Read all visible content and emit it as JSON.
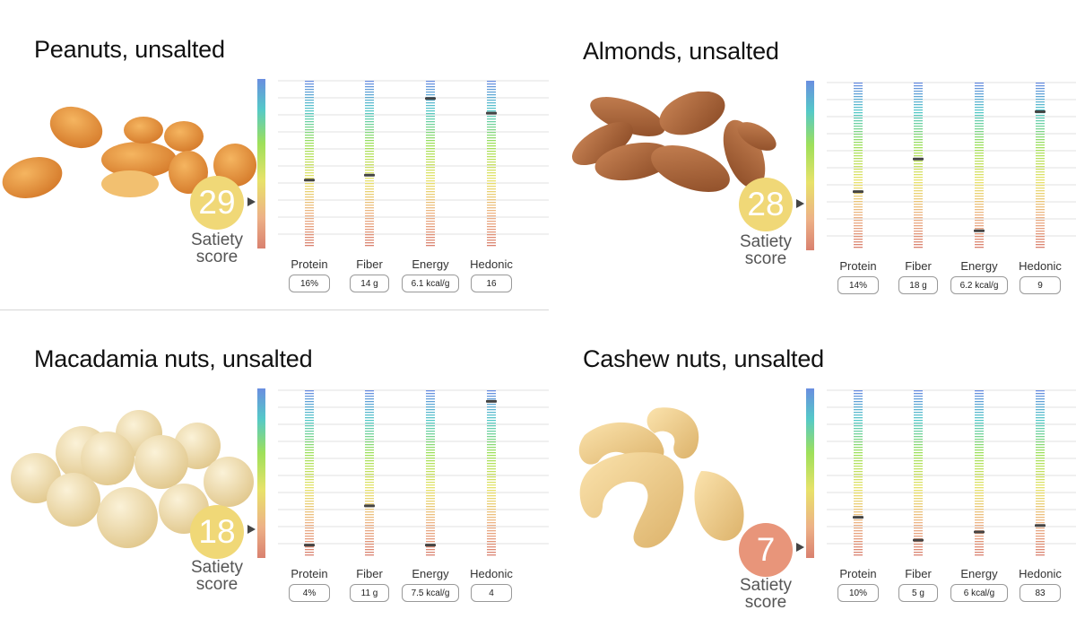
{
  "colors": {
    "score_yellow": "#f0d877",
    "score_orange": "#e8957a",
    "marker": "#444444",
    "gridline": "#e2e2e2"
  },
  "score_text": "Satiety score",
  "metrics": [
    "Protein",
    "Fiber",
    "Energy",
    "Hedonic"
  ],
  "chart_data": [
    {
      "type": "bar",
      "title": "Peanuts, unsalted",
      "image": "peanuts-photo",
      "score": 29,
      "score_color": "#f0d877",
      "categories": [
        "Protein",
        "Fiber",
        "Energy",
        "Hedonic"
      ],
      "values": [
        "16%",
        "14 g",
        "6.1 kcal/g",
        "16"
      ],
      "marker_levels": [
        0.4,
        0.43,
        0.9,
        0.81
      ]
    },
    {
      "type": "bar",
      "title": "Almonds, unsalted",
      "image": "almonds-photo",
      "score": 28,
      "score_color": "#f0d877",
      "categories": [
        "Protein",
        "Fiber",
        "Energy",
        "Hedonic"
      ],
      "values": [
        "14%",
        "18 g",
        "6.2 kcal/g",
        "9"
      ],
      "marker_levels": [
        0.34,
        0.54,
        0.1,
        0.83
      ]
    },
    {
      "type": "bar",
      "title": "Macadamia nuts, unsalted",
      "image": "macadamia-photo",
      "score": 18,
      "score_color": "#f0d877",
      "categories": [
        "Protein",
        "Fiber",
        "Energy",
        "Hedonic"
      ],
      "values": [
        "4%",
        "11 g",
        "7.5 kcal/g",
        "4"
      ],
      "marker_levels": [
        0.06,
        0.3,
        0.06,
        0.94
      ]
    },
    {
      "type": "bar",
      "title": "Cashew nuts, unsalted",
      "image": "cashew-photo",
      "score": 7,
      "score_color": "#e8957a",
      "categories": [
        "Protein",
        "Fiber",
        "Energy",
        "Hedonic"
      ],
      "values": [
        "10%",
        "5 g",
        "6 kcal/g",
        "83"
      ],
      "marker_levels": [
        0.23,
        0.09,
        0.14,
        0.18
      ]
    }
  ]
}
